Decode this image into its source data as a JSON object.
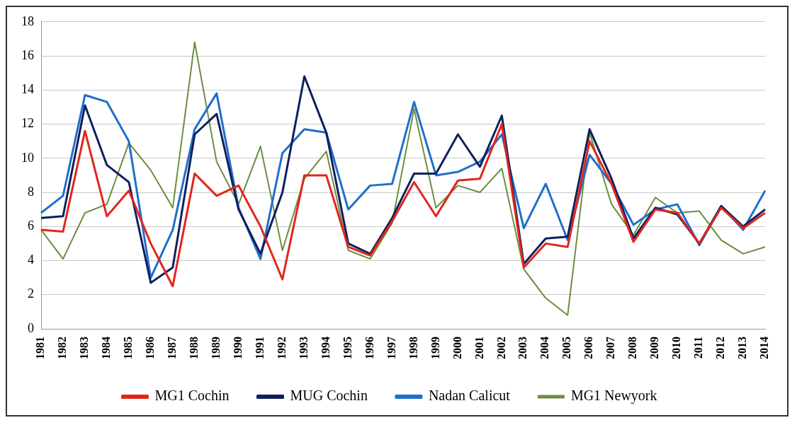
{
  "chart_data": {
    "type": "line",
    "categories": [
      "1981",
      "1982",
      "1983",
      "1984",
      "1985",
      "1986",
      "1987",
      "1988",
      "1989",
      "1990",
      "1991",
      "1992",
      "1993",
      "1994",
      "1995",
      "1996",
      "1997",
      "1998",
      "1999",
      "2000",
      "2001",
      "2002",
      "2003",
      "2004",
      "2005",
      "2006",
      "2007",
      "2008",
      "2009",
      "2010",
      "2011",
      "2012",
      "2013",
      "2014"
    ],
    "series": [
      {
        "name": "MG1 Cochin",
        "color": "#e0261c",
        "values": [
          5.8,
          5.7,
          11.6,
          6.6,
          8.1,
          5.0,
          2.5,
          9.1,
          7.8,
          8.4,
          6.0,
          2.9,
          9.0,
          9.0,
          4.8,
          4.3,
          6.3,
          8.6,
          6.6,
          8.7,
          8.8,
          12.0,
          3.6,
          5.0,
          4.8,
          11.0,
          8.5,
          5.1,
          7.0,
          6.8,
          5.0,
          7.1,
          5.9,
          6.8
        ]
      },
      {
        "name": "MUG Cochin",
        "color": "#0f1f5e",
        "values": [
          6.5,
          6.6,
          13.1,
          9.6,
          8.6,
          2.7,
          3.6,
          11.4,
          12.6,
          7.0,
          4.4,
          8.0,
          14.8,
          11.5,
          5.0,
          4.4,
          6.5,
          9.1,
          9.1,
          11.4,
          9.5,
          12.5,
          3.8,
          5.3,
          5.4,
          11.7,
          8.8,
          5.3,
          7.1,
          6.7,
          5.0,
          7.2,
          6.0,
          7.0
        ]
      },
      {
        "name": "Nadan Calicut",
        "color": "#1f6fc9",
        "values": [
          6.8,
          7.8,
          13.7,
          13.3,
          11.0,
          3.0,
          5.8,
          11.7,
          13.8,
          7.1,
          4.1,
          10.3,
          11.7,
          11.5,
          7.0,
          8.4,
          8.5,
          13.3,
          9.0,
          9.2,
          9.8,
          11.4,
          5.9,
          8.5,
          5.2,
          10.2,
          8.5,
          6.1,
          7.0,
          7.3,
          4.9,
          7.2,
          5.8,
          8.1
        ]
      },
      {
        "name": "MG1 Newyork",
        "color": "#6b8e3e",
        "values": [
          5.8,
          4.1,
          6.8,
          7.3,
          10.9,
          9.3,
          7.1,
          16.8,
          9.8,
          7.3,
          10.7,
          4.6,
          8.8,
          10.4,
          4.6,
          4.1,
          6.2,
          12.9,
          7.1,
          8.4,
          8.0,
          9.4,
          3.5,
          1.8,
          0.8,
          11.5,
          7.3,
          5.5,
          7.7,
          6.8,
          6.9,
          5.2,
          4.4,
          4.8
        ]
      }
    ],
    "ylim": [
      0,
      18
    ],
    "yticks": [
      0,
      2,
      4,
      6,
      8,
      10,
      12,
      14,
      16,
      18
    ],
    "grid": "y",
    "legend": "bottom",
    "marker": "none",
    "line_style": "solid"
  }
}
